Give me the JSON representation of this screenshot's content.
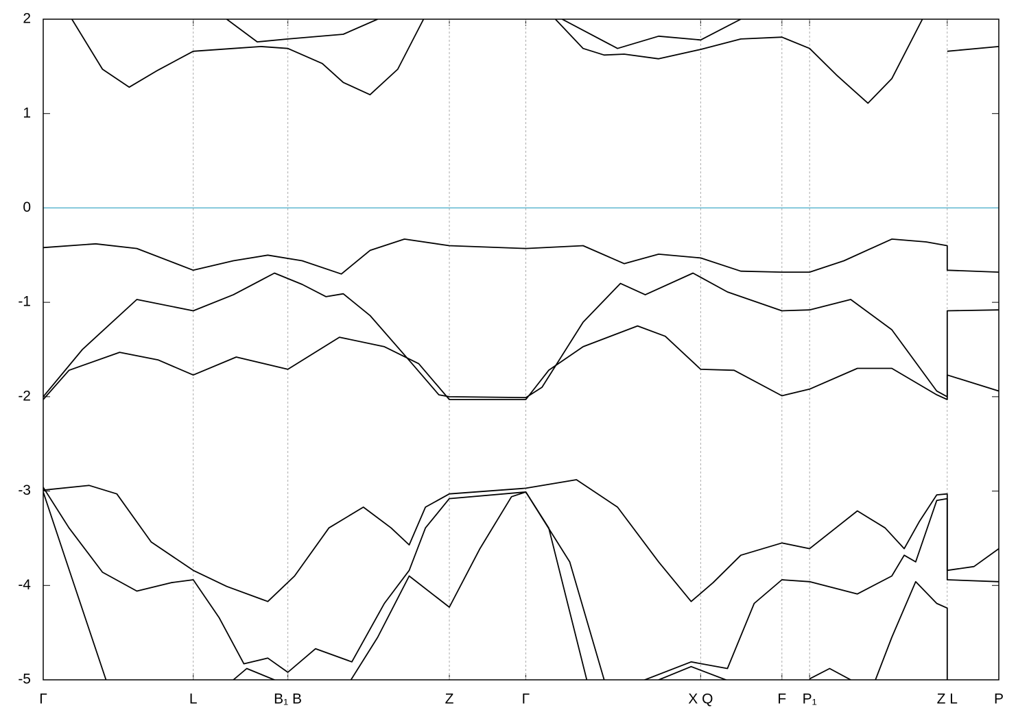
{
  "chart_data": {
    "type": "line",
    "color": "#000000",
    "xlim": [
      0,
      1
    ],
    "ylim": [
      -5,
      2
    ],
    "yticks": [
      2,
      1,
      0,
      -1,
      -2,
      -3,
      -4,
      -5
    ],
    "xticks": [
      {
        "value": 0,
        "label": "Γ"
      },
      {
        "value": 0.157,
        "label": "L"
      },
      {
        "value": 0.256,
        "label": "B₁ B"
      },
      {
        "value": 0.425,
        "label": "Z"
      },
      {
        "value": 0.505,
        "label": "Γ"
      },
      {
        "value": 0.688,
        "label": "X Q"
      },
      {
        "value": 0.773,
        "label": "F"
      },
      {
        "value": 0.802,
        "label": "P₁"
      },
      {
        "value": 0.946,
        "label": "Z L"
      },
      {
        "value": 1,
        "label": "P"
      }
    ],
    "xgrid": true,
    "hline": 0,
    "hline_color": "#5bb5cf",
    "series": [
      {
        "x": [
          0,
          0.055,
          0.098,
          0.157,
          0.199,
          0.235,
          0.271,
          0.312,
          0.342,
          0.378,
          0.425,
          0.505,
          0.565,
          0.608,
          0.644,
          0.688,
          0.73,
          0.773,
          0.802,
          0.838,
          0.888,
          0.924,
          0.946,
          0.946,
          1
        ],
        "values": [
          -0.42,
          -0.38,
          -0.43,
          -0.66,
          -0.56,
          -0.5,
          -0.56,
          -0.7,
          -0.45,
          -0.33,
          -0.4,
          -0.43,
          -0.4,
          -0.59,
          -0.49,
          -0.53,
          -0.67,
          -0.68,
          -0.68,
          -0.56,
          -0.33,
          -0.36,
          -0.4,
          -0.66,
          -0.68
        ]
      },
      {
        "x": [
          0,
          0.041,
          0.098,
          0.157,
          0.199,
          0.242,
          0.271,
          0.296,
          0.314,
          0.342,
          0.386,
          0.414,
          0.425,
          0.505,
          0.522,
          0.565,
          0.604,
          0.63,
          0.68,
          0.716,
          0.773,
          0.802,
          0.845,
          0.888,
          0.935,
          0.946,
          0.946,
          1
        ],
        "values": [
          -2.0,
          -1.5,
          -0.97,
          -1.09,
          -0.92,
          -0.69,
          -0.81,
          -0.94,
          -0.91,
          -1.14,
          -1.65,
          -1.98,
          -2.0,
          -2.01,
          -1.9,
          -1.21,
          -0.8,
          -0.92,
          -0.69,
          -0.89,
          -1.09,
          -1.08,
          -0.97,
          -1.29,
          -1.94,
          -2.0,
          -1.09,
          -1.08
        ]
      },
      {
        "x": [
          0,
          0.027,
          0.08,
          0.12,
          0.157,
          0.202,
          0.256,
          0.31,
          0.357,
          0.393,
          0.425,
          0.505,
          0.529,
          0.565,
          0.622,
          0.651,
          0.688,
          0.723,
          0.773,
          0.802,
          0.852,
          0.888,
          0.935,
          0.946,
          0.946,
          1
        ],
        "values": [
          -2.03,
          -1.72,
          -1.53,
          -1.61,
          -1.77,
          -1.58,
          -1.71,
          -1.37,
          -1.47,
          -1.65,
          -2.03,
          -2.03,
          -1.72,
          -1.47,
          -1.25,
          -1.36,
          -1.71,
          -1.72,
          -1.99,
          -1.92,
          -1.7,
          -1.7,
          -1.98,
          -2.03,
          -1.77,
          -1.94
        ]
      },
      {
        "x": [
          0.023,
          0.03,
          0.062,
          0.09,
          0.12,
          0.157,
          0.199,
          0.228,
          0.256,
          0.292,
          0.314,
          0.342,
          0.371,
          0.398,
          0.505,
          0.536,
          0.565,
          0.587,
          0.608,
          0.644,
          0.688,
          0.73,
          0.773,
          0.802,
          0.831,
          0.863,
          0.888,
          0.92,
          0.935,
          0.946,
          1
        ],
        "values": [
          2.13,
          2.0,
          1.47,
          1.28,
          1.46,
          1.66,
          1.69,
          1.71,
          1.69,
          1.53,
          1.33,
          1.2,
          1.47,
          2.0,
          null,
          2.0,
          1.69,
          1.62,
          1.63,
          1.58,
          1.68,
          1.79,
          1.81,
          1.69,
          1.4,
          1.11,
          1.37,
          2.0,
          null,
          1.66,
          1.71
        ]
      },
      {
        "x": [
          0.192,
          0.224,
          0.256,
          0.314,
          0.35,
          0.505,
          0.543,
          0.601,
          0.644,
          0.688,
          0.73
        ],
        "values": [
          2.0,
          1.76,
          1.79,
          1.84,
          2.0,
          null,
          2.0,
          1.69,
          1.82,
          1.78,
          2.0
        ]
      },
      {
        "x": [
          0,
          0.048,
          0.077,
          0.113,
          0.157,
          0.192,
          0.235,
          0.263,
          0.299,
          0.335,
          0.364,
          0.383,
          0.4,
          0.425,
          0.505,
          0.558,
          0.601,
          0.644,
          0.678,
          0.701,
          0.73,
          0.773,
          0.802,
          0.852,
          0.881,
          0.901,
          0.917,
          0.935,
          0.946,
          0.946,
          0.974,
          1
        ],
        "values": [
          -2.99,
          -2.94,
          -3.03,
          -3.54,
          -3.84,
          -4.01,
          -4.17,
          -3.9,
          -3.39,
          -3.17,
          -3.39,
          -3.57,
          -3.17,
          -3.03,
          -2.97,
          -2.88,
          -3.17,
          -3.75,
          -4.17,
          -3.97,
          -3.68,
          -3.55,
          -3.61,
          -3.21,
          -3.39,
          -3.61,
          -3.32,
          -3.04,
          -3.03,
          -3.84,
          -3.8,
          -3.61
        ]
      },
      {
        "x": [
          0,
          0.027,
          0.062,
          0.098,
          0.134,
          0.157,
          0.184,
          0.21,
          0.235,
          0.256,
          0.285,
          0.323,
          0.357,
          0.383,
          0.4,
          0.425,
          0.505,
          0.551,
          0.587,
          0.601,
          0.622,
          0.678,
          0.716,
          0.744,
          0.773,
          0.802,
          0.852,
          0.888,
          0.901,
          0.913,
          0.935,
          0.946,
          0.946,
          1
        ],
        "values": [
          -2.96,
          -3.39,
          -3.86,
          -4.06,
          -3.97,
          -3.94,
          -4.34,
          -4.83,
          -4.77,
          -4.92,
          -4.67,
          -4.81,
          -4.19,
          -3.84,
          -3.39,
          -3.08,
          -3.01,
          -3.75,
          -5.0,
          -5.21,
          -5.03,
          -4.81,
          -4.88,
          -4.19,
          -3.94,
          -3.96,
          -4.09,
          -3.9,
          -3.68,
          -3.75,
          -3.1,
          -3.08,
          -3.94,
          -3.96
        ]
      },
      {
        "x": [
          0,
          0.027,
          0.07,
          0.157,
          0.199,
          0.213,
          0.249,
          0.263,
          0.285,
          0.314,
          0.35,
          0.383,
          0.425,
          0.457,
          0.49,
          0.505,
          0.529,
          0.572,
          0.601,
          0.637,
          0.678,
          0.73,
          0.773,
          0.802,
          0.823,
          0.845,
          0.852,
          0.866,
          0.888,
          0.913,
          0.935,
          0.946,
          0.946
        ],
        "values": [
          -3.01,
          -3.83,
          -5.13,
          null,
          -5.0,
          -4.88,
          -5.03,
          -5.13,
          null,
          -5.13,
          -4.55,
          -3.9,
          -4.23,
          -3.61,
          -3.06,
          -3.01,
          -3.39,
          -5.13,
          null,
          -5.03,
          -4.86,
          -5.06,
          null,
          -4.99,
          -4.88,
          -5.0,
          null,
          -5.13,
          -4.55,
          -3.96,
          -4.19,
          -4.24,
          -5.13
        ]
      }
    ]
  }
}
